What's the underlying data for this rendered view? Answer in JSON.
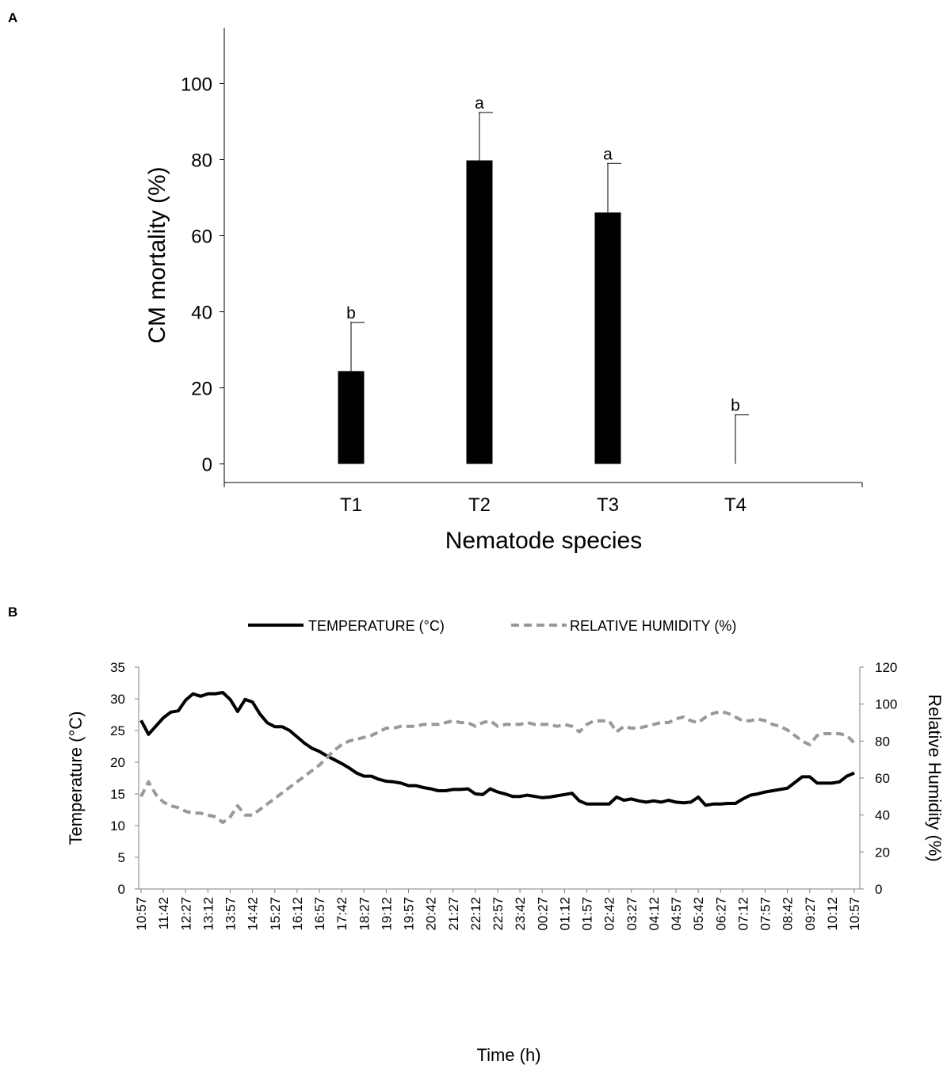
{
  "panels": {
    "a": {
      "label": "A"
    },
    "b": {
      "label": "B"
    }
  },
  "chart_data": [
    {
      "type": "bar",
      "categories": [
        "T1",
        "T2",
        "T3",
        "T4"
      ],
      "values": [
        24.4,
        79.8,
        66.1,
        0
      ],
      "errors": [
        12.8,
        12.6,
        12.9,
        12.9
      ],
      "significance": [
        "b",
        "a",
        "a",
        "b"
      ],
      "xlabel": "Nematode species",
      "ylabel": "CM mortality (%)",
      "yticks": [
        0,
        20,
        40,
        60,
        80,
        100
      ],
      "ylim": [
        -5,
        115
      ],
      "bar_color": "#000000"
    },
    {
      "type": "line",
      "xlabel": "Time (h)",
      "ylabel": "Temperature (°C)",
      "y2label": "Relative Humidity (%)",
      "ylim": [
        0,
        35
      ],
      "y2lim": [
        0,
        120
      ],
      "yticks": [
        0,
        5,
        10,
        15,
        20,
        25,
        30,
        35
      ],
      "y2ticks": [
        0,
        20,
        40,
        60,
        80,
        100,
        120
      ],
      "xticks": [
        "10:57",
        "11:42",
        "12:27",
        "13:12",
        "13:57",
        "14:42",
        "15:27",
        "16:12",
        "16:57",
        "17:42",
        "18:27",
        "19:12",
        "19:57",
        "20:42",
        "21:27",
        "22:12",
        "22:57",
        "23:42",
        "00:27",
        "01:12",
        "01:57",
        "02:42",
        "03:27",
        "04:12",
        "04:57",
        "05:42",
        "06:27",
        "07:12",
        "07:57",
        "08:42",
        "09:27",
        "10:12",
        "10:57"
      ],
      "legend": "top-center",
      "series": [
        {
          "name": "TEMPERATURE (°C)",
          "axis": "left",
          "color": "#000000",
          "dash": "solid",
          "values": [
            26.6,
            24.4,
            25.7,
            27.0,
            27.9,
            28.1,
            29.8,
            30.8,
            30.4,
            30.8,
            30.8,
            31.0,
            29.9,
            28.0,
            29.9,
            29.5,
            27.6,
            26.2,
            25.6,
            25.6,
            25.0,
            24.0,
            23.0,
            22.2,
            21.7,
            21.0,
            20.4,
            19.8,
            19.1,
            18.3,
            17.8,
            17.8,
            17.3,
            17.0,
            16.9,
            16.7,
            16.3,
            16.3,
            16.0,
            15.8,
            15.5,
            15.5,
            15.7,
            15.7,
            15.8,
            15.0,
            14.9,
            15.8,
            15.3,
            15.0,
            14.6,
            14.6,
            14.8,
            14.6,
            14.4,
            14.5,
            14.7,
            14.9,
            15.1,
            13.9,
            13.4,
            13.4,
            13.4,
            13.4,
            14.5,
            14.0,
            14.2,
            13.9,
            13.7,
            13.9,
            13.7,
            14.0,
            13.7,
            13.6,
            13.7,
            14.5,
            13.2,
            13.4,
            13.4,
            13.5,
            13.5,
            14.2,
            14.8,
            15.0,
            15.3,
            15.5,
            15.7,
            15.9,
            16.8,
            17.7,
            17.7,
            16.7,
            16.7,
            16.7,
            16.9,
            17.8,
            18.3
          ]
        },
        {
          "name": "RELATIVE HUMIDITY (%)",
          "axis": "right",
          "color": "#999999",
          "dash": "dashed",
          "values": [
            50,
            58,
            51,
            47,
            45,
            44,
            42,
            41,
            41,
            40,
            39,
            36,
            39,
            45,
            40,
            40,
            43,
            46,
            49,
            52,
            55,
            58,
            61,
            64,
            67,
            71,
            75,
            78,
            80,
            81,
            82,
            83,
            85,
            87,
            87,
            88,
            88,
            88,
            89,
            89,
            89,
            90,
            91,
            90,
            90,
            88,
            90,
            91,
            88,
            89,
            89,
            89,
            90,
            89,
            89,
            89,
            88,
            89,
            88,
            85,
            89,
            91,
            91,
            91,
            85,
            88,
            87,
            87,
            88,
            89,
            90,
            90,
            92,
            93,
            91,
            90,
            93,
            95,
            96,
            95,
            93,
            91,
            91,
            92,
            91,
            89,
            88,
            86,
            83,
            80,
            78,
            83,
            84,
            84,
            84,
            83,
            79
          ]
        }
      ]
    }
  ]
}
